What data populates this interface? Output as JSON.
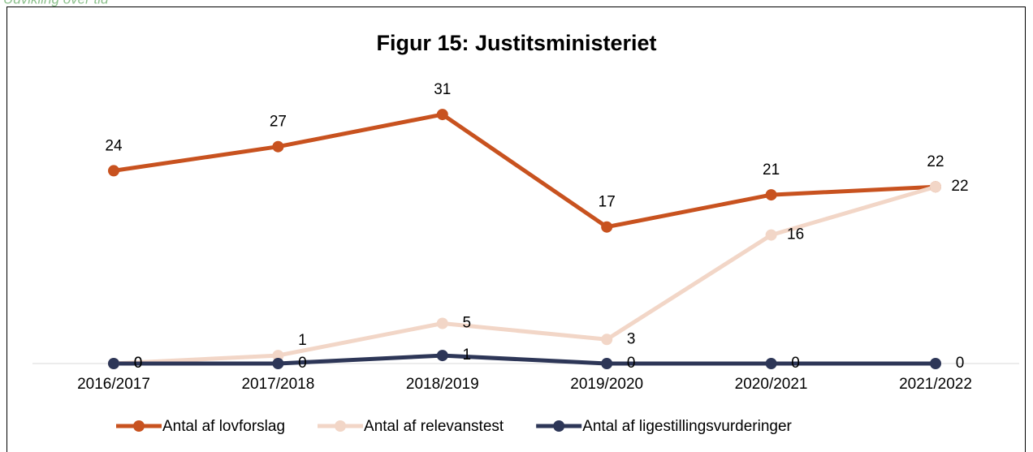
{
  "subtitle": "Udvikling over tid",
  "chart_data": {
    "type": "line",
    "title": "Figur 15: Justitsministeriet",
    "categories": [
      "2016/2017",
      "2017/2018",
      "2018/2019",
      "2019/2020",
      "2020/2021",
      "2021/2022"
    ],
    "series": [
      {
        "name": "Antal af lovforslag",
        "color": "#c8521f",
        "values": [
          24,
          27,
          31,
          17,
          21,
          22
        ]
      },
      {
        "name": "Antal af relevanstest",
        "color": "#f2d6c7",
        "values": [
          0,
          1,
          5,
          3,
          16,
          22
        ]
      },
      {
        "name": "Antal af ligestillingsvurderinger",
        "color": "#2d3657",
        "values": [
          0,
          0,
          1,
          0,
          0,
          0
        ]
      }
    ],
    "ylim": [
      0,
      35
    ],
    "legend": "bottom"
  }
}
